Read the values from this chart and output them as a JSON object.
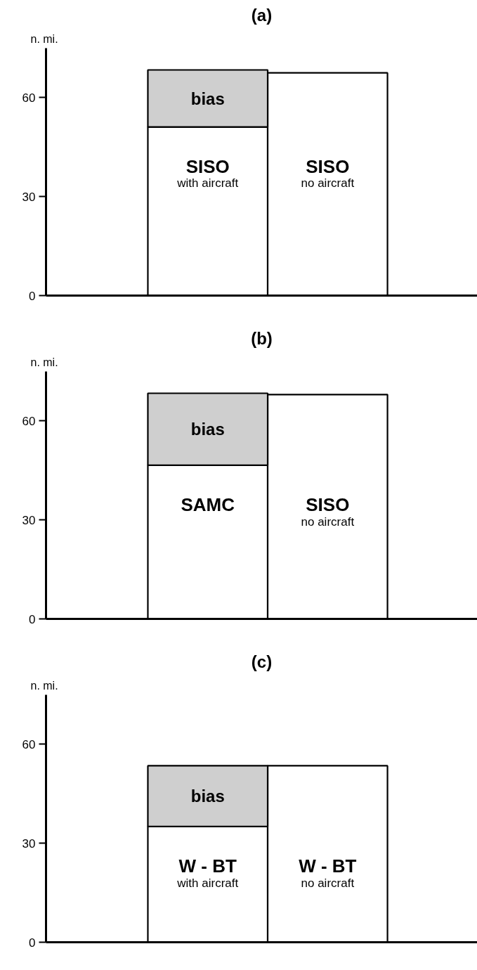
{
  "chart_data": [
    {
      "type": "bar",
      "title": "(a)",
      "ylabel": "n. mi.",
      "stacked": true,
      "categories": [
        "SISO\nwith aircraft",
        "SISO\nno aircraft"
      ],
      "ylim": [
        0,
        75
      ],
      "yticks": [
        0,
        30,
        60
      ],
      "grid": false,
      "series": [
        {
          "color": "#ffffff",
          "values": [
            51.1,
            67.5
          ]
        },
        {
          "name": "bias",
          "color": "#cfcfcf",
          "values": [
            17.3,
            null
          ]
        }
      ]
    },
    {
      "type": "bar",
      "title": "(b)",
      "ylabel": "n. mi.",
      "stacked": true,
      "categories": [
        "SAMC",
        "SISO\nno aircraft"
      ],
      "ylim": [
        0,
        75
      ],
      "yticks": [
        0,
        30,
        60
      ],
      "grid": false,
      "series": [
        {
          "color": "#ffffff",
          "values": [
            46.6,
            68.0
          ]
        },
        {
          "name": "bias",
          "color": "#cfcfcf",
          "values": [
            21.8,
            null
          ]
        }
      ]
    },
    {
      "type": "bar",
      "title": "(c)",
      "ylabel": "n. mi.",
      "stacked": true,
      "categories": [
        "W - BT\nwith aircraft",
        "W - BT\nno aircraft"
      ],
      "ylim": [
        0,
        75
      ],
      "yticks": [
        0,
        30,
        60
      ],
      "grid": false,
      "series": [
        {
          "color": "#ffffff",
          "values": [
            35.1,
            53.5
          ]
        },
        {
          "name": "bias",
          "color": "#cfcfcf",
          "values": [
            18.4,
            null
          ]
        }
      ]
    }
  ]
}
